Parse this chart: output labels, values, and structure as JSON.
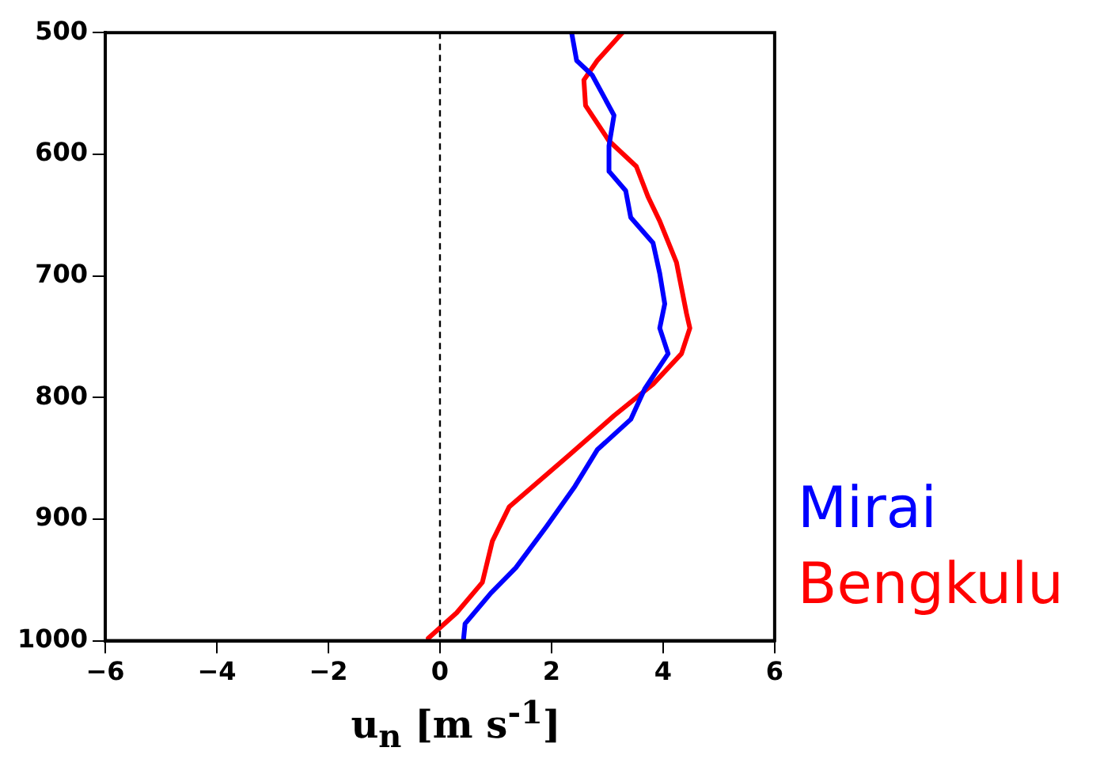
{
  "chart_data": {
    "type": "line",
    "xlabel": "u$_{n}$ [m s$^{-1}$]",
    "series": [
      {
        "name": "Mirai",
        "color": "#0000ff",
        "x": [
          2.36,
          2.45,
          2.73,
          3.12,
          3.03,
          3.03,
          3.33,
          3.42,
          3.82,
          3.94,
          4.03,
          3.94,
          4.09,
          3.67,
          3.42,
          2.82,
          2.42,
          1.91,
          1.36,
          0.91,
          0.45,
          0.42
        ],
        "values": [
          500,
          523,
          535,
          568,
          593,
          614,
          630,
          652,
          673,
          698,
          723,
          743,
          764,
          793,
          818,
          843,
          873,
          906,
          940,
          961,
          986,
          1000
        ]
      },
      {
        "name": "Bengkulu",
        "color": "#ff0000",
        "x": [
          3.27,
          2.82,
          2.58,
          2.61,
          3.03,
          3.52,
          3.73,
          3.94,
          4.24,
          4.42,
          4.48,
          4.33,
          3.82,
          3.12,
          2.3,
          1.24,
          0.94,
          0.76,
          0.3,
          -0.21
        ],
        "values": [
          500,
          523,
          539,
          560,
          589,
          610,
          635,
          655,
          689,
          731,
          743,
          764,
          789,
          815,
          848,
          890,
          918,
          952,
          977,
          998
        ]
      }
    ],
    "xlim": [
      -6,
      6
    ],
    "xticks": [
      -6,
      -4,
      -2,
      0,
      2,
      4,
      6
    ],
    "ylim": [
      1000,
      500
    ],
    "yticks": [
      500,
      600,
      700,
      800,
      900,
      1000
    ],
    "ref_lines": [
      {
        "axis": "x",
        "value": 0,
        "color": "#000000",
        "line_style": "dashed"
      }
    ],
    "grid": false,
    "legend": "right",
    "marker": "none",
    "line_style": "solid"
  }
}
